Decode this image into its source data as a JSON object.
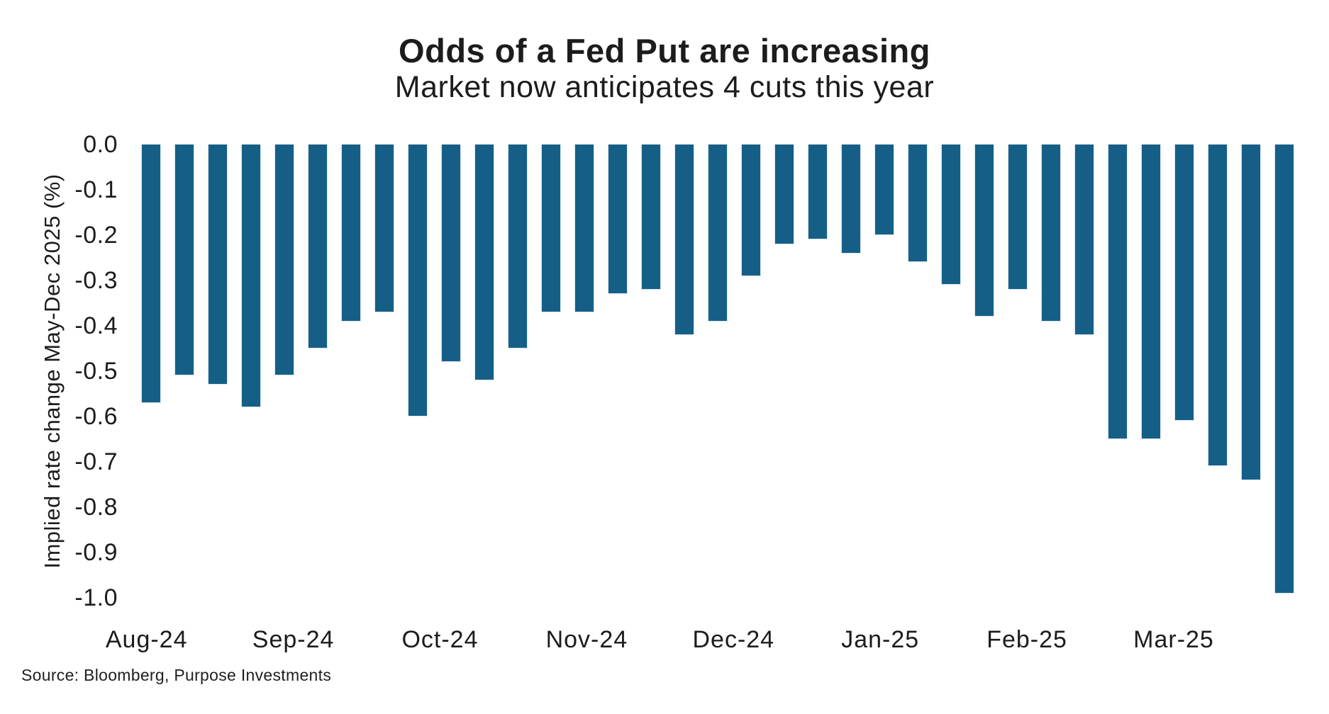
{
  "figure": {
    "title": "Odds of a Fed Put are increasing",
    "subtitle": "Market now anticipates 4 cuts this year",
    "source": "Source: Bloomberg, Purpose Investments"
  },
  "colors": {
    "bar_fill": "#155f87",
    "bar_edge": "#d9e8f1",
    "text": "#1c1c1c",
    "background": "#ffffff"
  },
  "chart_data": {
    "type": "bar",
    "title": "Odds of a Fed Put are increasing",
    "subtitle": "Market now anticipates 4 cuts this year",
    "xlabel": "",
    "ylabel": "Implied rate change May-Dec 2025 (%)",
    "ylim": [
      -1.0,
      0.0
    ],
    "grid": false,
    "legend": false,
    "granularity": "weekly",
    "bar_color": "#155f87",
    "x_tick_labels": [
      "Aug-24",
      "Sep-24",
      "Oct-24",
      "Nov-24",
      "Dec-24",
      "Jan-25",
      "Feb-25",
      "Mar-25"
    ],
    "y_tick_labels": [
      "0.0",
      "-0.1",
      "-0.2",
      "-0.3",
      "-0.4",
      "-0.5",
      "-0.6",
      "-0.7",
      "-0.8",
      "-0.9",
      "-1.0"
    ],
    "values": [
      -0.57,
      -0.51,
      -0.53,
      -0.58,
      -0.51,
      -0.45,
      -0.39,
      -0.37,
      -0.6,
      -0.48,
      -0.52,
      -0.45,
      -0.37,
      -0.37,
      -0.33,
      -0.32,
      -0.42,
      -0.39,
      -0.29,
      -0.22,
      -0.21,
      -0.24,
      -0.2,
      -0.26,
      -0.31,
      -0.38,
      -0.32,
      -0.39,
      -0.42,
      -0.65,
      -0.65,
      -0.61,
      -0.71,
      -0.74,
      -0.99
    ]
  }
}
